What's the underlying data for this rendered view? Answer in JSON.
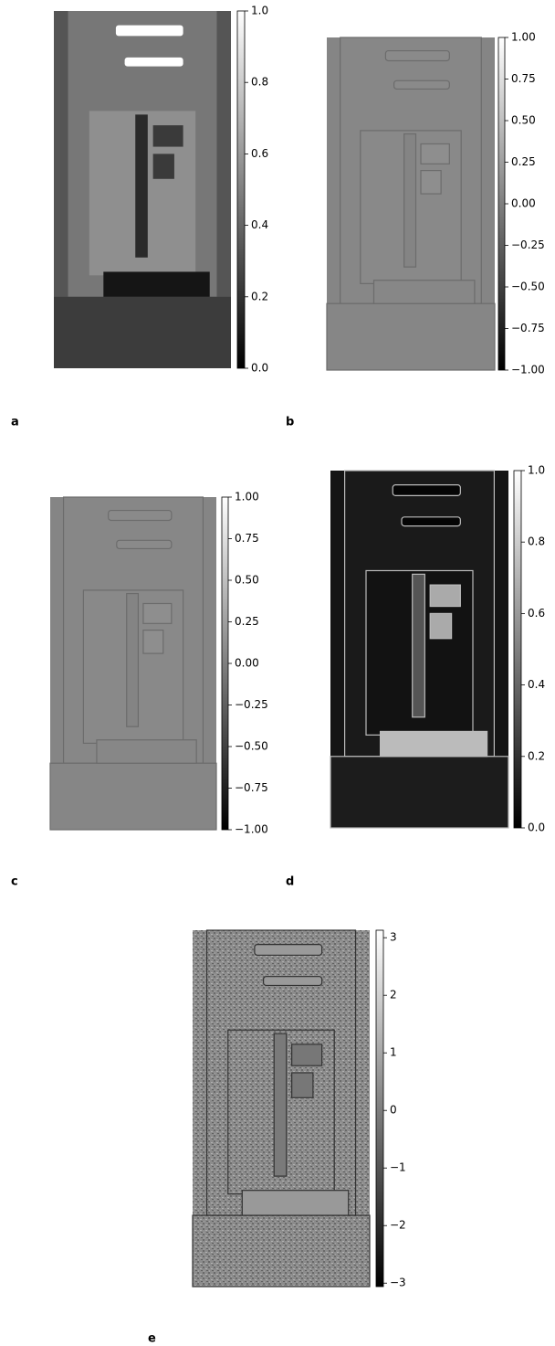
{
  "panels": [
    {
      "label": "a",
      "colorbar": {
        "lim": [
          0,
          1
        ],
        "ticks": [
          {
            "value": 0,
            "label": "0.0"
          },
          0.2,
          0.4,
          0.6,
          0.8,
          {
            "value": 1,
            "label": "1.0"
          }
        ]
      }
    },
    {
      "label": "b",
      "colorbar": {
        "lim": [
          -1,
          1
        ],
        "ticks": [
          {
            "value": -1,
            "label": "−1.00"
          },
          {
            "value": -0.75,
            "label": "−0.75"
          },
          {
            "value": -0.5,
            "label": "−0.50"
          },
          {
            "value": -0.25,
            "label": "−0.25"
          },
          {
            "value": 0,
            "label": "0.00"
          },
          0.25,
          {
            "value": 0.5,
            "label": "0.50"
          },
          0.75,
          {
            "value": 1,
            "label": "1.00"
          }
        ]
      }
    },
    {
      "label": "c",
      "colorbar": {
        "lim": [
          -1,
          1
        ],
        "ticks": [
          {
            "value": -1,
            "label": "−1.00"
          },
          {
            "value": -0.75,
            "label": "−0.75"
          },
          {
            "value": -0.5,
            "label": "−0.50"
          },
          {
            "value": -0.25,
            "label": "−0.25"
          },
          {
            "value": 0,
            "label": "0.00"
          },
          0.25,
          {
            "value": 0.5,
            "label": "0.50"
          },
          0.75,
          {
            "value": 1,
            "label": "1.00"
          }
        ]
      }
    },
    {
      "label": "d",
      "colorbar": {
        "lim": [
          0,
          1
        ],
        "ticks": [
          {
            "value": 0,
            "label": "0.0"
          },
          0.2,
          0.4,
          0.6,
          0.8,
          {
            "value": 1,
            "label": "1.0"
          }
        ]
      }
    },
    {
      "label": "e",
      "colorbar": {
        "lim": [
          -3.06,
          3.13
        ],
        "ticks": [
          {
            "value": -3,
            "label": "−3"
          },
          {
            "value": -2,
            "label": "−2"
          },
          {
            "value": -1,
            "label": "−1"
          },
          0,
          1,
          2,
          3
        ]
      }
    }
  ]
}
